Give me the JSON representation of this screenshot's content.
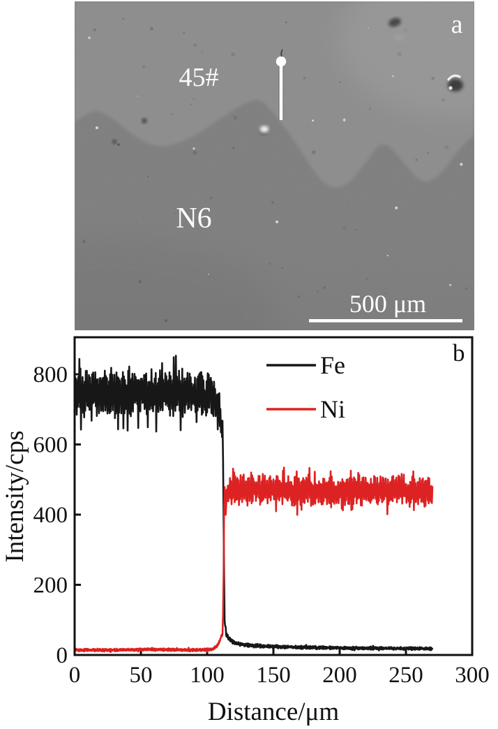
{
  "figure": {
    "panel_a": {
      "label": "a",
      "material_label_top": "45#",
      "material_label_bottom": "N6",
      "scale_bar_text": "500 μm"
    },
    "panel_b": {
      "label": "b"
    }
  },
  "chart_data": {
    "type": "line",
    "title": "",
    "xlabel": "Distance/μm",
    "ylabel": "Intensity/cps",
    "xlim": [
      0,
      300
    ],
    "ylim": [
      0,
      905
    ],
    "xticks": [
      0,
      50,
      100,
      150,
      200,
      250,
      300
    ],
    "yticks": [
      0,
      200,
      400,
      600,
      800
    ],
    "grid": false,
    "legend": {
      "position": "upper-right-inside",
      "entries": [
        "Fe",
        "Ni"
      ]
    },
    "series": [
      {
        "name": "Fe",
        "color": "#171717",
        "seed": 7,
        "points": [
          [
            0,
            745
          ],
          [
            20,
            742
          ],
          [
            40,
            750
          ],
          [
            60,
            740
          ],
          [
            80,
            746
          ],
          [
            100,
            738
          ],
          [
            104,
            732
          ],
          [
            107,
            712
          ],
          [
            109,
            690
          ],
          [
            110.5,
            662
          ],
          [
            111.8,
            655
          ],
          [
            112.5,
            330
          ],
          [
            113.2,
            95
          ],
          [
            114.5,
            58
          ],
          [
            117,
            45
          ],
          [
            122,
            32
          ],
          [
            135,
            26
          ],
          [
            160,
            23
          ],
          [
            200,
            20
          ],
          [
            240,
            19
          ],
          [
            270,
            18
          ]
        ]
      },
      {
        "name": "Ni",
        "color": "#dc2222",
        "seed": 13,
        "points": [
          [
            0,
            14
          ],
          [
            30,
            14
          ],
          [
            60,
            16
          ],
          [
            90,
            14
          ],
          [
            100,
            15
          ],
          [
            104,
            17
          ],
          [
            107,
            24
          ],
          [
            109,
            36
          ],
          [
            110.5,
            52
          ],
          [
            111.8,
            60
          ],
          [
            112.4,
            230
          ],
          [
            112.9,
            468
          ],
          [
            113.5,
            480
          ],
          [
            114,
            375
          ],
          [
            114.6,
            468
          ],
          [
            118,
            474
          ],
          [
            150,
            470
          ],
          [
            200,
            468
          ],
          [
            240,
            471
          ],
          [
            270,
            466
          ]
        ]
      }
    ],
    "noise": {
      "scale": 0.065,
      "base": 2
    }
  }
}
